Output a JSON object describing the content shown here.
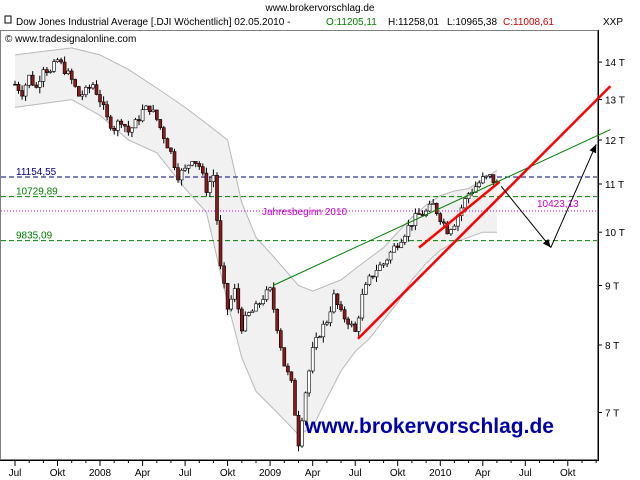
{
  "header": {
    "site": "www.brokervorschlag.de",
    "title": "Dow Jones Industrial Average [.DJI  Wöchentlich] 02.05.2010 -",
    "ohlc": {
      "o_label": "O:11205,11",
      "h_label": "H:11258,01",
      "l_label": "L:10965,38",
      "c_label": "C:11008,61"
    },
    "copyright": "© www.tradesignalonline.com",
    "symbol": "XXP"
  },
  "colors": {
    "candle_up": "#ffffff",
    "candle_down": "#8b1a1a",
    "green": "#008000",
    "red": "#ff0000",
    "navy": "#000080",
    "magenta": "#cc00cc",
    "band": "#b8b8b8",
    "watermark": "#0000aa"
  },
  "chart_data": {
    "type": "candlestick",
    "ylim": [
      6500,
      14800
    ],
    "y_ticks": [
      {
        "v": 14000,
        "label": "14 T"
      },
      {
        "v": 13000,
        "label": "13 T"
      },
      {
        "v": 12000,
        "label": "12 T"
      },
      {
        "v": 11000,
        "label": "11 T"
      },
      {
        "v": 10000,
        "label": "10 T"
      },
      {
        "v": 9000,
        "label": "9 T"
      },
      {
        "v": 8000,
        "label": "8 T"
      },
      {
        "v": 7000,
        "label": "7 T"
      }
    ],
    "x_ticks": [
      {
        "t": 0,
        "label": "Jul"
      },
      {
        "t": 3,
        "label": "Okt"
      },
      {
        "t": 6,
        "label": "2008"
      },
      {
        "t": 9,
        "label": "Apr"
      },
      {
        "t": 12,
        "label": "Jul"
      },
      {
        "t": 15,
        "label": "Okt"
      },
      {
        "t": 18,
        "label": "2009"
      },
      {
        "t": 21,
        "label": "Apr"
      },
      {
        "t": 24,
        "label": "Jul"
      },
      {
        "t": 27,
        "label": "Okt"
      },
      {
        "t": 30,
        "label": "2010"
      },
      {
        "t": 33,
        "label": "Apr"
      },
      {
        "t": 36,
        "label": "Jul"
      },
      {
        "t": 39,
        "label": "Okt"
      }
    ],
    "time_unit": "months since Jul 2007",
    "hlines": [
      {
        "value": 11154.55,
        "label": "11154,55",
        "style": "dashed",
        "color": "navy"
      },
      {
        "value": 10729.89,
        "label": "10729,89",
        "style": "dashed",
        "color": "green"
      },
      {
        "value": 10428.13,
        "label": "Jahresbeginn 2010",
        "style": "dotted",
        "color": "magenta"
      },
      {
        "value": 9835.09,
        "label": "9835,09",
        "style": "dashed",
        "color": "green"
      }
    ],
    "forecast_label": "10423,13",
    "close_series": [
      [
        0,
        13400
      ],
      [
        0.5,
        13200
      ],
      [
        1,
        13600
      ],
      [
        1.5,
        13300
      ],
      [
        2,
        13900
      ],
      [
        2.5,
        13700
      ],
      [
        3,
        14050
      ],
      [
        3.5,
        13800
      ],
      [
        4,
        13500
      ],
      [
        4.5,
        13100
      ],
      [
        5,
        13200
      ],
      [
        5.5,
        13400
      ],
      [
        6,
        13000
      ],
      [
        6.5,
        12500
      ],
      [
        7,
        12300
      ],
      [
        7.5,
        12500
      ],
      [
        8,
        12200
      ],
      [
        8.5,
        12400
      ],
      [
        9,
        12700
      ],
      [
        9.5,
        12800
      ],
      [
        10,
        12500
      ],
      [
        10.5,
        12100
      ],
      [
        11,
        11700
      ],
      [
        11.5,
        11200
      ],
      [
        12,
        11300
      ],
      [
        12.5,
        11600
      ],
      [
        13,
        11400
      ],
      [
        13.5,
        10900
      ],
      [
        14,
        11200
      ],
      [
        14.5,
        9300
      ],
      [
        15,
        8600
      ],
      [
        15.5,
        8900
      ],
      [
        16,
        8300
      ],
      [
        16.5,
        8500
      ],
      [
        17,
        8600
      ],
      [
        17.5,
        8800
      ],
      [
        18,
        8900
      ],
      [
        18.5,
        8300
      ],
      [
        19,
        7700
      ],
      [
        19.5,
        7400
      ],
      [
        20,
        6600
      ],
      [
        20.5,
        7300
      ],
      [
        21,
        7900
      ],
      [
        21.5,
        8200
      ],
      [
        22,
        8400
      ],
      [
        22.5,
        8800
      ],
      [
        23,
        8500
      ],
      [
        23.5,
        8400
      ],
      [
        24,
        8200
      ],
      [
        24.5,
        8800
      ],
      [
        25,
        9100
      ],
      [
        25.5,
        9300
      ],
      [
        26,
        9400
      ],
      [
        26.5,
        9600
      ],
      [
        27,
        9800
      ],
      [
        27.5,
        10000
      ],
      [
        28,
        10200
      ],
      [
        28.5,
        10350
      ],
      [
        29,
        10400
      ],
      [
        29.5,
        10550
      ],
      [
        30,
        10300
      ],
      [
        30.5,
        10050
      ],
      [
        31,
        10200
      ],
      [
        31.5,
        10500
      ],
      [
        32,
        10800
      ],
      [
        32.5,
        10950
      ],
      [
        33,
        11100
      ],
      [
        33.5,
        11150
      ],
      [
        34,
        11008
      ]
    ],
    "bands": {
      "upper": [
        [
          0,
          14200
        ],
        [
          2,
          14300
        ],
        [
          4,
          14400
        ],
        [
          6,
          14200
        ],
        [
          8,
          13800
        ],
        [
          10,
          13300
        ],
        [
          12,
          12800
        ],
        [
          13.5,
          12400
        ],
        [
          15,
          12000
        ],
        [
          16,
          10600
        ],
        [
          17,
          9900
        ],
        [
          18,
          9600
        ],
        [
          19,
          9300
        ],
        [
          20,
          9000
        ],
        [
          21,
          8900
        ],
        [
          22,
          9000
        ],
        [
          23,
          9100
        ],
        [
          24,
          9300
        ],
        [
          25,
          9500
        ],
        [
          26,
          9700
        ],
        [
          27,
          10000
        ],
        [
          28,
          10300
        ],
        [
          29,
          10550
        ],
        [
          30,
          10750
        ],
        [
          31,
          10850
        ],
        [
          32,
          10900
        ],
        [
          33,
          11100
        ],
        [
          34,
          11300
        ]
      ],
      "lower": [
        [
          0,
          12800
        ],
        [
          2,
          12900
        ],
        [
          4,
          13000
        ],
        [
          6,
          12600
        ],
        [
          8,
          12000
        ],
        [
          10,
          11700
        ],
        [
          12,
          10900
        ],
        [
          13.5,
          10400
        ],
        [
          15,
          8700
        ],
        [
          16,
          7800
        ],
        [
          17,
          7300
        ],
        [
          18,
          7100
        ],
        [
          19,
          6900
        ],
        [
          20,
          6700
        ],
        [
          21,
          6800
        ],
        [
          22,
          7200
        ],
        [
          23,
          7600
        ],
        [
          24,
          7900
        ],
        [
          25,
          8100
        ],
        [
          26,
          8400
        ],
        [
          27,
          8700
        ],
        [
          28,
          9100
        ],
        [
          29,
          9400
        ],
        [
          30,
          9650
        ],
        [
          31,
          9800
        ],
        [
          32,
          9900
        ],
        [
          33,
          10000
        ],
        [
          34,
          10000
        ]
      ]
    },
    "trendlines": [
      {
        "name": "green-trendline",
        "color": "green",
        "width": 1,
        "p1": [
          18.2,
          9000
        ],
        "p2": [
          42,
          12250
        ]
      },
      {
        "name": "red-trendline-long",
        "color": "red",
        "width": 2.5,
        "p1": [
          24.2,
          8100
        ],
        "p2": [
          42,
          13350
        ]
      },
      {
        "name": "red-trendline-short",
        "color": "red",
        "width": 2.5,
        "p1": [
          28.5,
          9700
        ],
        "p2": [
          34.2,
          11050
        ]
      }
    ],
    "arrows": [
      {
        "name": "down-arrow",
        "p1": [
          34.3,
          10950
        ],
        "p2": [
          37.8,
          9700
        ]
      },
      {
        "name": "up-arrow",
        "p1": [
          37.8,
          9700
        ],
        "p2": [
          41,
          11900
        ]
      }
    ]
  },
  "watermark": "www.brokervorschlag.de"
}
